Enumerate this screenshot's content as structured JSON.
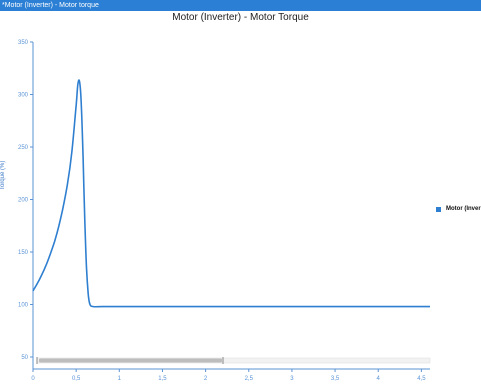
{
  "window": {
    "title": "*Motor (Inverter) - Motor torque"
  },
  "colors": {
    "titlebar": "#2b7fd4",
    "series": "#2f7fd0",
    "axis": "#5a93d6"
  },
  "chart_data": {
    "type": "line",
    "title": "Motor (Inverter) - Motor Torque",
    "ylabel": "Torque (%)",
    "xlabel": "",
    "xlim": [
      0,
      4.6
    ],
    "ylim": [
      50,
      350
    ],
    "x_ticks": [
      "0",
      "0,5",
      "1",
      "1,5",
      "2",
      "2,5",
      "3",
      "3,5",
      "4",
      "4,5"
    ],
    "x_tick_values": [
      0,
      0.5,
      1,
      1.5,
      2,
      2.5,
      3,
      3.5,
      4,
      4.5
    ],
    "y_ticks": [
      "50",
      "100",
      "150",
      "200",
      "250",
      "300",
      "350"
    ],
    "y_tick_values": [
      50,
      100,
      150,
      200,
      250,
      300,
      350
    ],
    "series": [
      {
        "name": "Motor (Inver",
        "x": [
          0,
          0.05,
          0.1,
          0.15,
          0.2,
          0.25,
          0.3,
          0.35,
          0.4,
          0.45,
          0.5,
          0.52,
          0.54,
          0.56,
          0.58,
          0.6,
          0.62,
          0.64,
          0.66,
          0.7,
          0.8,
          1.0,
          1.5,
          2.0,
          2.5,
          3.0,
          3.5,
          4.0,
          4.6
        ],
        "y": [
          113,
          120,
          128,
          137,
          148,
          160,
          175,
          193,
          215,
          245,
          290,
          310,
          312,
          290,
          240,
          180,
          135,
          110,
          100,
          98,
          98,
          98,
          98,
          98,
          98,
          98,
          98,
          98,
          98
        ]
      }
    ]
  },
  "legend": {
    "label": "Motor (Inver"
  }
}
